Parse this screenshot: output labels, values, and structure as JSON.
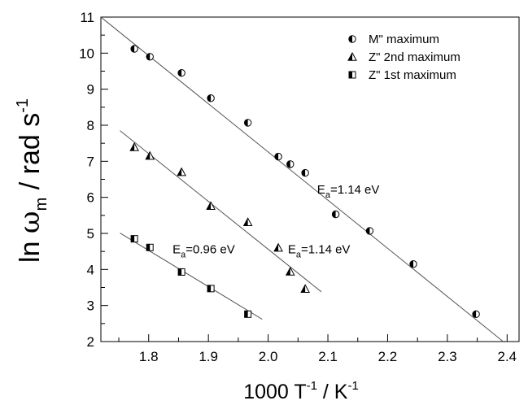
{
  "chart_data": {
    "type": "scatter",
    "xlabel": {
      "main": "1000 T",
      "sup": "-1",
      "mid": " / K",
      "sup2": "-1"
    },
    "ylabel": {
      "main": "ln ",
      "greek": "ω",
      "sub": "m",
      "mid": " / rad s",
      "sup": "-1"
    },
    "xlim": [
      1.72,
      2.42
    ],
    "ylim": [
      2,
      11
    ],
    "xticks": [
      "1.8",
      "1.9",
      "2.0",
      "2.1",
      "2.2",
      "2.3",
      "2.4"
    ],
    "yticks": [
      "2",
      "3",
      "4",
      "5",
      "6",
      "7",
      "8",
      "9",
      "10",
      "11"
    ],
    "grid": false,
    "legend_position": "top-right",
    "series": [
      {
        "name": "M\" maximum",
        "marker": "circle-half",
        "x": [
          1.776,
          1.802,
          1.855,
          1.904,
          1.966,
          2.017,
          2.037,
          2.062,
          2.113,
          2.17,
          2.243,
          2.348
        ],
        "y": [
          10.12,
          9.9,
          9.45,
          8.75,
          8.07,
          7.13,
          6.92,
          6.68,
          5.53,
          5.07,
          4.15,
          2.76
        ]
      },
      {
        "name": "Z\" 2nd maximum",
        "marker": "triangle-half",
        "x": [
          1.776,
          1.802,
          1.855,
          1.904,
          1.966,
          2.017,
          2.037,
          2.062
        ],
        "y": [
          7.39,
          7.15,
          6.7,
          5.76,
          5.31,
          4.6,
          3.94,
          3.46
        ]
      },
      {
        "name": "Z\" 1st maximum",
        "marker": "square-half",
        "x": [
          1.776,
          1.802,
          1.855,
          1.904,
          1.966
        ],
        "y": [
          4.85,
          4.61,
          3.93,
          3.47,
          2.76
        ]
      }
    ],
    "fit_lines": [
      {
        "name": "M-fit",
        "x": [
          1.72,
          2.395
        ],
        "y": [
          11.0,
          1.98
        ]
      },
      {
        "name": "Z2-fit",
        "x": [
          1.752,
          2.089
        ],
        "y": [
          7.85,
          3.38
        ]
      },
      {
        "name": "Z1-fit",
        "x": [
          1.752,
          1.99
        ],
        "y": [
          5.01,
          2.62
        ]
      }
    ],
    "annotations": [
      {
        "main": "E",
        "sub": "a",
        "rest": "=1.14 eV",
        "x": 2.082,
        "y": 6.1
      },
      {
        "main": "E",
        "sub": "a",
        "rest": "=1.14 eV",
        "x": 2.033,
        "y": 4.45
      },
      {
        "main": "E",
        "sub": "a",
        "rest": "=0.96 eV",
        "x": 1.84,
        "y": 4.45
      }
    ]
  }
}
